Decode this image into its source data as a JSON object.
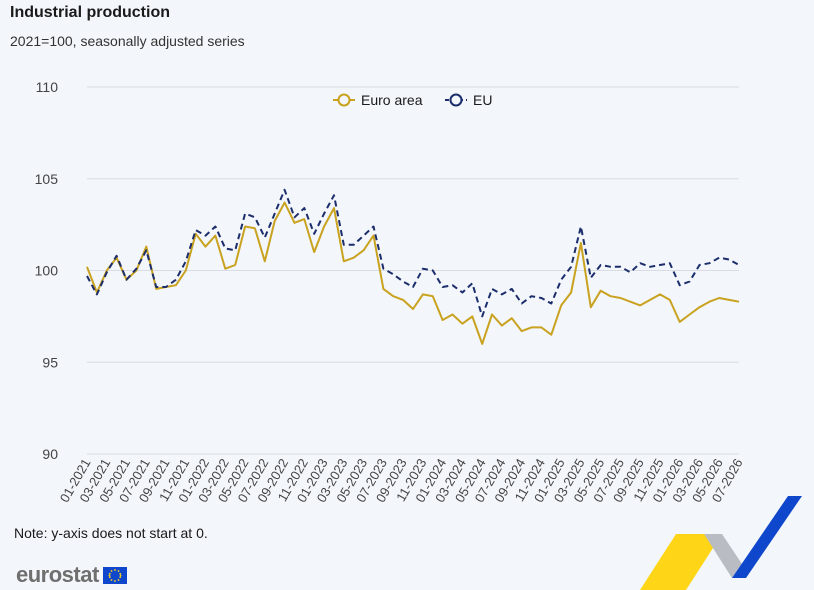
{
  "header": {
    "title": "Industrial production",
    "subtitle": "2021=100, seasonally adjusted series"
  },
  "footer": {
    "note": "Note: y-axis does not start at 0.",
    "logo_text": "eurostat"
  },
  "colors": {
    "euro_area": "#c9a21f",
    "eu": "#1b2d6b",
    "grid": "#d9dde3",
    "axis_text": "#444444"
  },
  "chart_data": {
    "type": "line",
    "title": "Industrial production",
    "subtitle": "2021=100, seasonally adjusted series",
    "ylim": [
      90,
      110
    ],
    "yticks": [
      90,
      95,
      100,
      105,
      110
    ],
    "grid": true,
    "legend_position": "top-center",
    "x": [
      "01-2021",
      "02-2021",
      "03-2021",
      "04-2021",
      "05-2021",
      "06-2021",
      "07-2021",
      "08-2021",
      "09-2021",
      "10-2021",
      "11-2021",
      "12-2021",
      "01-2022",
      "02-2022",
      "03-2022",
      "04-2022",
      "05-2022",
      "06-2022",
      "07-2022",
      "08-2022",
      "09-2022",
      "10-2022",
      "11-2022",
      "12-2022",
      "01-2023",
      "02-2023",
      "03-2023",
      "04-2023",
      "05-2023",
      "06-2023",
      "07-2023",
      "08-2023",
      "09-2023",
      "10-2023",
      "11-2023",
      "12-2023",
      "01-2024",
      "02-2024",
      "03-2024",
      "04-2024",
      "05-2024",
      "06-2024",
      "07-2024",
      "08-2024",
      "09-2024",
      "10-2024",
      "11-2024",
      "12-2024",
      "01-2025",
      "02-2025",
      "03-2025",
      "04-2025",
      "05-2025",
      "06-2025",
      "07-2025",
      "08-2025",
      "09-2025",
      "10-2025",
      "11-2025",
      "12-2025",
      "01-2026",
      "02-2026",
      "03-2026",
      "04-2026",
      "05-2026",
      "06-2026",
      "07-2026"
    ],
    "xticks": [
      "01-2021",
      "03-2021",
      "05-2021",
      "07-2021",
      "09-2021",
      "11-2021",
      "01-2022",
      "03-2022",
      "05-2022",
      "07-2022",
      "09-2022",
      "11-2022",
      "01-2023",
      "03-2023",
      "05-2023",
      "07-2023",
      "09-2023",
      "11-2023",
      "01-2024",
      "03-2024",
      "05-2024",
      "07-2024",
      "09-2024",
      "11-2024",
      "01-2025",
      "03-2025",
      "05-2025",
      "07-2025",
      "09-2025",
      "11-2025",
      "01-2026",
      "03-2026",
      "05-2026",
      "07-2026"
    ],
    "series": [
      {
        "name": "Euro area",
        "style": "solid",
        "values": [
          100.2,
          98.8,
          100.0,
          100.7,
          99.5,
          100.0,
          101.3,
          99.0,
          99.1,
          99.2,
          100.0,
          102.0,
          101.3,
          101.9,
          100.1,
          100.3,
          102.4,
          102.3,
          100.5,
          102.7,
          103.7,
          102.6,
          102.8,
          101.0,
          102.4,
          103.4,
          100.5,
          100.7,
          101.1,
          101.9,
          99.0,
          98.6,
          98.4,
          97.9,
          98.7,
          98.6,
          97.3,
          97.6,
          97.1,
          97.5,
          96.0,
          97.6,
          97.0,
          97.4,
          96.7,
          96.9,
          96.9,
          96.5,
          98.1,
          98.8,
          101.5,
          98.0,
          98.9,
          98.6,
          98.5,
          98.3,
          98.1,
          98.4,
          98.7,
          98.4,
          97.2,
          97.6,
          98.0,
          98.3,
          98.5,
          98.4,
          98.3
        ]
      },
      {
        "name": "EU",
        "style": "dashed",
        "values": [
          99.7,
          98.7,
          99.9,
          100.8,
          99.5,
          100.1,
          101.1,
          99.1,
          99.1,
          99.5,
          100.5,
          102.2,
          101.9,
          102.4,
          101.2,
          101.1,
          103.1,
          102.9,
          101.8,
          103.1,
          104.4,
          102.9,
          103.4,
          102.0,
          103.1,
          104.1,
          101.4,
          101.4,
          101.9,
          102.4,
          100.1,
          99.8,
          99.4,
          99.1,
          100.1,
          100.0,
          99.1,
          99.2,
          98.8,
          99.3,
          97.5,
          99.0,
          98.7,
          99.0,
          98.2,
          98.6,
          98.5,
          98.2,
          99.5,
          100.2,
          102.4,
          99.6,
          100.3,
          100.2,
          100.2,
          99.9,
          100.4,
          100.2,
          100.3,
          100.4,
          99.2,
          99.4,
          100.3,
          100.4,
          100.7,
          100.6,
          100.3
        ]
      }
    ]
  }
}
